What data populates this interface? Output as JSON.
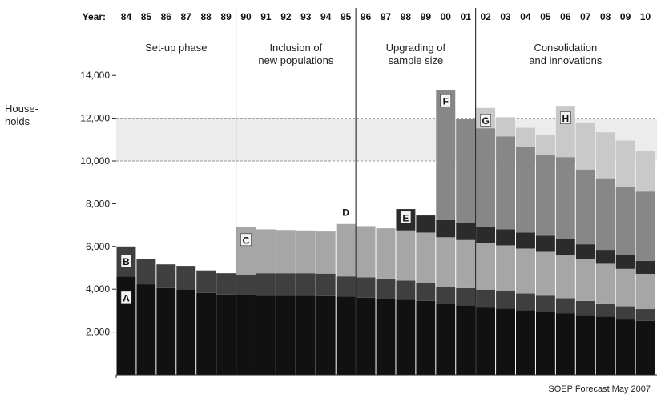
{
  "chart_data": {
    "type": "bar",
    "stacked": true,
    "ylabel": "House-\nholds",
    "year_header": "Year:",
    "categories": [
      "84",
      "85",
      "86",
      "87",
      "88",
      "89",
      "90",
      "91",
      "92",
      "93",
      "94",
      "95",
      "96",
      "97",
      "98",
      "99",
      "00",
      "01",
      "02",
      "03",
      "04",
      "05",
      "06",
      "07",
      "08",
      "09",
      "10"
    ],
    "yticks": [
      "2,000",
      "4,000",
      "6,000",
      "8,000",
      "10,000",
      "12,000",
      "14,000"
    ],
    "ylim": [
      0,
      15000
    ],
    "grid": false,
    "reference_lines": [
      10000,
      12000
    ],
    "shaded_band": [
      10000,
      12000
    ],
    "series": [
      {
        "values": [
          4600,
          4230,
          4050,
          3970,
          3830,
          3750,
          3730,
          3700,
          3700,
          3700,
          3680,
          3650,
          3600,
          3550,
          3500,
          3450,
          3330,
          3250,
          3180,
          3100,
          3020,
          2950,
          2880,
          2800,
          2720,
          2620,
          2520
        ],
        "color": "#111111"
      },
      {
        "values": [
          1400,
          1200,
          1110,
          1120,
          1050,
          1000,
          950,
          1050,
          1050,
          1050,
          1050,
          950,
          950,
          950,
          900,
          850,
          800,
          800,
          800,
          800,
          780,
          750,
          700,
          650,
          620,
          580,
          550
        ],
        "color": "#3f3f3f"
      },
      {
        "values": [
          0,
          0,
          0,
          0,
          0,
          0,
          2250,
          2050,
          2020,
          2000,
          1970,
          2450,
          2400,
          2350,
          2350,
          2350,
          2300,
          2250,
          2200,
          2150,
          2100,
          2050,
          2000,
          1950,
          1850,
          1750,
          1650
        ],
        "color": "#a6a6a6"
      },
      {
        "values": [
          0,
          0,
          0,
          0,
          0,
          0,
          0,
          0,
          0,
          0,
          0,
          0,
          0,
          0,
          1000,
          800,
          800,
          800,
          750,
          750,
          750,
          750,
          750,
          700,
          650,
          650,
          600
        ],
        "color": "#2b2b2b"
      },
      {
        "values": [
          0,
          0,
          0,
          0,
          0,
          0,
          0,
          0,
          0,
          0,
          0,
          0,
          0,
          0,
          0,
          0,
          6100,
          4850,
          4600,
          4350,
          4000,
          3800,
          3850,
          3500,
          3350,
          3200,
          3250
        ],
        "color": "#878787"
      },
      {
        "values": [
          0,
          0,
          0,
          0,
          0,
          0,
          0,
          0,
          0,
          0,
          0,
          0,
          0,
          0,
          0,
          0,
          0,
          0,
          950,
          900,
          900,
          900,
          2400,
          2200,
          2150,
          2150,
          1900
        ],
        "color": "#c9c9c9"
      }
    ],
    "phases": [
      {
        "label": "Set-up phase",
        "from": 0,
        "to": 5
      },
      {
        "label": "Inclusion of\nnew populations",
        "from": 6,
        "to": 11
      },
      {
        "label": "Upgrading of\nsample size",
        "from": 12,
        "to": 17
      },
      {
        "label": "Consolidation\nand innovations",
        "from": 18,
        "to": 26
      }
    ],
    "annotations": [
      {
        "label": "A",
        "category": "84",
        "y": 3600,
        "style": "light"
      },
      {
        "label": "B",
        "category": "84",
        "y": 5300,
        "style": "light"
      },
      {
        "label": "C",
        "category": "90",
        "y": 6300,
        "style": "light"
      },
      {
        "label": "D",
        "category": "95",
        "y": 7600,
        "style": "plain"
      },
      {
        "label": "E",
        "category": "98",
        "y": 7350,
        "style": "light"
      },
      {
        "label": "F",
        "category": "00",
        "y": 12800,
        "style": "light"
      },
      {
        "label": "G",
        "category": "02",
        "y": 11900,
        "style": "light"
      },
      {
        "label": "H",
        "category": "06",
        "y": 12000,
        "style": "light"
      }
    ]
  },
  "source_note": "SOEP Forecast  May 2007"
}
